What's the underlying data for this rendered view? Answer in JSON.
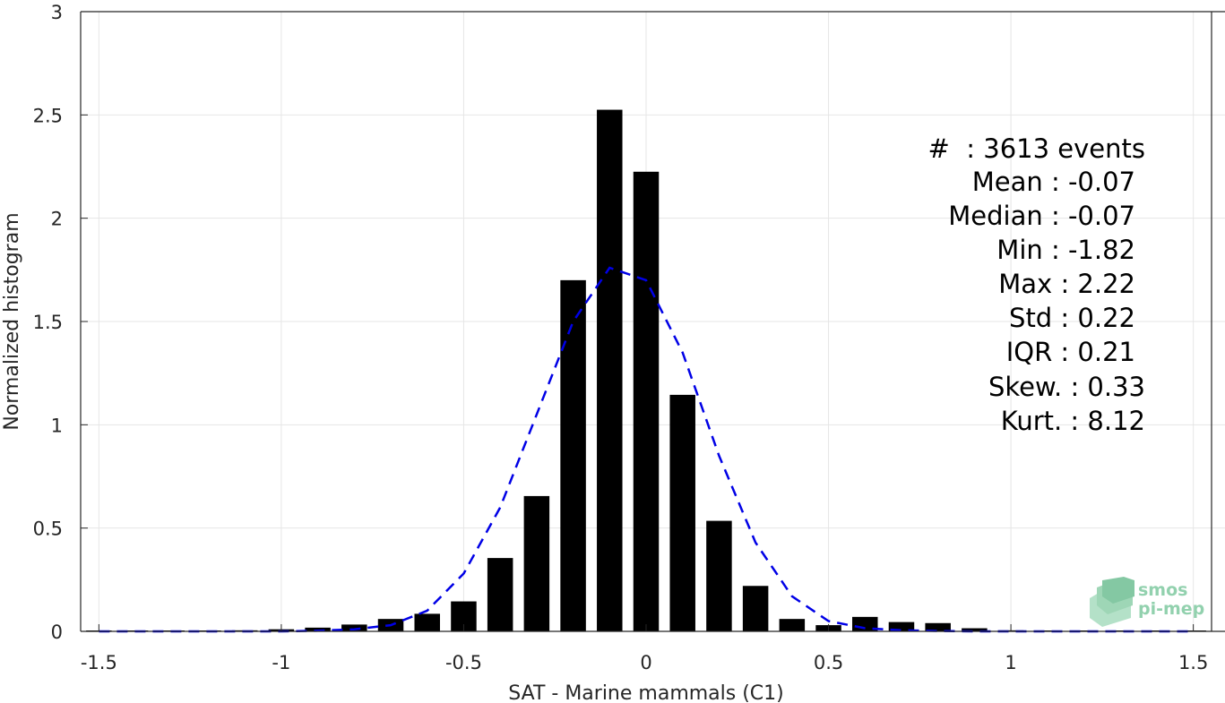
{
  "chart_data": {
    "type": "bar",
    "xlabel": "SAT - Marine mammals (C1)",
    "ylabel": "Normalized histogram",
    "xlim": [
      -1.55,
      1.55
    ],
    "ylim": [
      0,
      3
    ],
    "xticks": [
      -1.5,
      -1,
      -0.5,
      0,
      0.5,
      1,
      1.5
    ],
    "xtick_labels": [
      "-1.5",
      "-1",
      "-0.5",
      "0",
      "0.5",
      "1",
      "1.5"
    ],
    "yticks": [
      0,
      0.5,
      1,
      1.5,
      2,
      2.5,
      3
    ],
    "ytick_labels": [
      "0",
      "0.5",
      "1",
      "1.5",
      "2",
      "2.5",
      "3"
    ],
    "grid": true,
    "bar_width": 0.07,
    "bar_color": "#000000",
    "bars": {
      "x": [
        -1.5,
        -1.4,
        -1.3,
        -1.2,
        -1.1,
        -1.0,
        -0.9,
        -0.8,
        -0.7,
        -0.6,
        -0.5,
        -0.4,
        -0.3,
        -0.2,
        -0.1,
        0.0,
        0.1,
        0.2,
        0.3,
        0.4,
        0.5,
        0.6,
        0.7,
        0.8,
        0.9,
        1.0,
        1.1,
        1.2,
        1.3,
        1.4,
        1.5
      ],
      "values": [
        0.002,
        0.002,
        0.003,
        0.003,
        0.005,
        0.01,
        0.018,
        0.033,
        0.06,
        0.085,
        0.145,
        0.355,
        0.655,
        1.7,
        2.525,
        2.225,
        1.145,
        0.535,
        0.22,
        0.06,
        0.03,
        0.07,
        0.045,
        0.04,
        0.015,
        0.005,
        0.004,
        0.003,
        0.002,
        0.002,
        0.002
      ]
    },
    "fit_curve": {
      "style": "dashed",
      "color": "#0000e6",
      "x": [
        -1.5,
        -1.4,
        -1.3,
        -1.2,
        -1.1,
        -1.0,
        -0.9,
        -0.8,
        -0.7,
        -0.6,
        -0.5,
        -0.4,
        -0.3,
        -0.2,
        -0.1,
        0.0,
        0.1,
        0.2,
        0.3,
        0.4,
        0.5,
        0.6,
        0.7,
        0.8,
        0.9,
        1.0,
        1.1,
        1.2,
        1.3,
        1.4,
        1.5
      ],
      "y": [
        0.0,
        0.0,
        0.0,
        0.0,
        0.0,
        0.0,
        0.003,
        0.01,
        0.03,
        0.1,
        0.28,
        0.6,
        1.05,
        1.5,
        1.76,
        1.7,
        1.35,
        0.85,
        0.43,
        0.17,
        0.05,
        0.015,
        0.005,
        0.002,
        0.0,
        0.0,
        0.0,
        0.0,
        0.0,
        0.0,
        0.0
      ]
    }
  },
  "stats": {
    "count": "#  : 3613 events",
    "mean": "Mean : -0.07",
    "median": "Median : -0.07",
    "min": "Min : -1.82",
    "max": "Max : 2.22",
    "std": "Std : 0.22",
    "iqr": "IQR : 0.21",
    "skew": "Skew. : 0.33",
    "kurt": "Kurt. : 8.12"
  },
  "logo": {
    "line1": "smos",
    "line2": "pi-mep"
  },
  "colors": {
    "grid": "#e6e6e6",
    "axis": "#262626",
    "logo": "#7fc9a0"
  }
}
